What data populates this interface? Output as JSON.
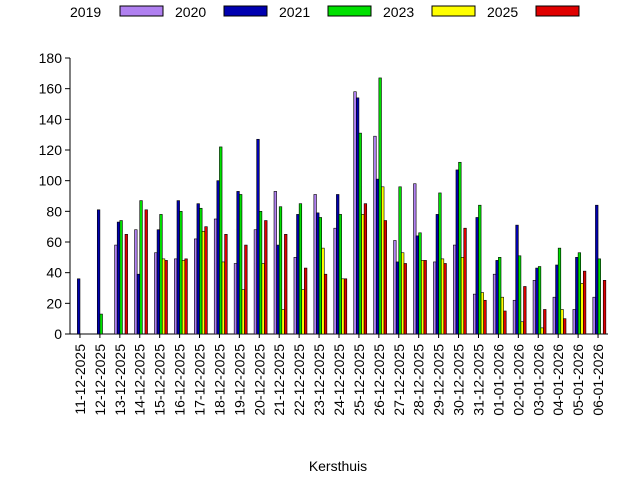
{
  "chart_data": {
    "type": "bar",
    "xlabel": "Kersthuis",
    "ylabel": "",
    "ylim": [
      0,
      180
    ],
    "yticks": [
      0,
      20,
      40,
      60,
      80,
      100,
      120,
      140,
      160,
      180
    ],
    "grid": false,
    "legend_position": "top",
    "categories": [
      "11-12-2025",
      "12-12-2025",
      "13-12-2025",
      "14-12-2025",
      "15-12-2025",
      "16-12-2025",
      "17-12-2025",
      "18-12-2025",
      "19-12-2025",
      "20-12-2025",
      "21-12-2025",
      "22-12-2025",
      "23-12-2025",
      "24-12-2025",
      "25-12-2025",
      "26-12-2025",
      "27-12-2025",
      "28-12-2025",
      "29-12-2025",
      "30-12-2025",
      "31-12-2025",
      "01-01-2026",
      "02-01-2026",
      "03-01-2026",
      "04-01-2026",
      "05-01-2026",
      "06-01-2026"
    ],
    "series": [
      {
        "name": "2019",
        "color": "#ffffff",
        "values": [
          0,
          0,
          0,
          0,
          0,
          0,
          0,
          0,
          0,
          0,
          0,
          0,
          0,
          0,
          0,
          0,
          0,
          0,
          0,
          0,
          0,
          0,
          0,
          0,
          0,
          0,
          0
        ]
      },
      {
        "name": "2020",
        "color": "#b080f0",
        "values": [
          0,
          0,
          58,
          68,
          53,
          49,
          62,
          75,
          46,
          68,
          93,
          50,
          91,
          69,
          158,
          129,
          61,
          98,
          47,
          58,
          26,
          39,
          22,
          35,
          24,
          16,
          24
        ]
      },
      {
        "name": "2021",
        "color": "#0000b0",
        "values": [
          36,
          81,
          73,
          39,
          68,
          87,
          85,
          100,
          93,
          127,
          58,
          78,
          79,
          91,
          154,
          101,
          47,
          64,
          78,
          107,
          76,
          48,
          71,
          43,
          45,
          50,
          84
        ]
      },
      {
        "name": "2023",
        "color": "#00e000",
        "values": [
          0,
          13,
          74,
          87,
          78,
          80,
          82,
          122,
          91,
          80,
          83,
          85,
          76,
          78,
          131,
          167,
          96,
          66,
          92,
          112,
          84,
          50,
          51,
          44,
          56,
          53,
          49
        ]
      },
      {
        "name": "2025",
        "color": "#ffff00",
        "values": [
          0,
          0,
          0,
          0,
          49,
          48,
          67,
          47,
          29,
          46,
          16,
          29,
          56,
          36,
          78,
          96,
          53,
          48,
          49,
          50,
          27,
          24,
          8,
          4,
          16,
          33,
          0
        ]
      },
      {
        "name": "",
        "color": "#e00000",
        "values": [
          0,
          0,
          65,
          81,
          48,
          49,
          70,
          65,
          58,
          74,
          65,
          43,
          39,
          36,
          85,
          74,
          46,
          48,
          46,
          69,
          22,
          15,
          31,
          16,
          10,
          41,
          35
        ]
      }
    ]
  }
}
